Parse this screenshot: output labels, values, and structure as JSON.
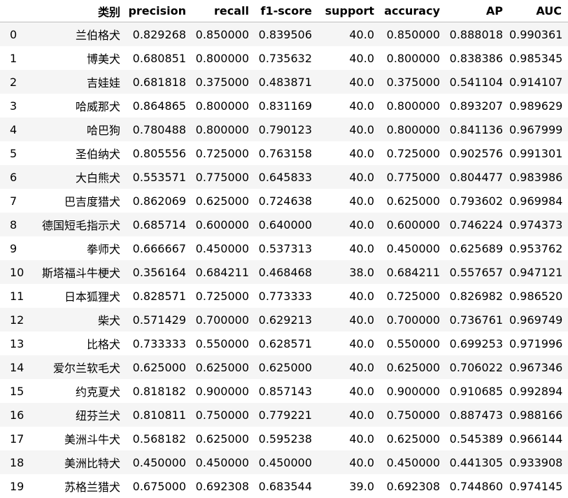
{
  "table": {
    "columns": [
      "",
      "类别",
      "precision",
      "recall",
      "f1-score",
      "support",
      "accuracy",
      "AP",
      "AUC"
    ],
    "rows": [
      [
        "0",
        "兰伯格犬",
        "0.829268",
        "0.850000",
        "0.839506",
        "40.0",
        "0.850000",
        "0.888018",
        "0.990361"
      ],
      [
        "1",
        "博美犬",
        "0.680851",
        "0.800000",
        "0.735632",
        "40.0",
        "0.800000",
        "0.838386",
        "0.985345"
      ],
      [
        "2",
        "吉娃娃",
        "0.681818",
        "0.375000",
        "0.483871",
        "40.0",
        "0.375000",
        "0.541104",
        "0.914107"
      ],
      [
        "3",
        "哈威那犬",
        "0.864865",
        "0.800000",
        "0.831169",
        "40.0",
        "0.800000",
        "0.893207",
        "0.989629"
      ],
      [
        "4",
        "哈巴狗",
        "0.780488",
        "0.800000",
        "0.790123",
        "40.0",
        "0.800000",
        "0.841136",
        "0.967999"
      ],
      [
        "5",
        "圣伯纳犬",
        "0.805556",
        "0.725000",
        "0.763158",
        "40.0",
        "0.725000",
        "0.902576",
        "0.991301"
      ],
      [
        "6",
        "大白熊犬",
        "0.553571",
        "0.775000",
        "0.645833",
        "40.0",
        "0.775000",
        "0.804477",
        "0.983986"
      ],
      [
        "7",
        "巴吉度猎犬",
        "0.862069",
        "0.625000",
        "0.724638",
        "40.0",
        "0.625000",
        "0.793602",
        "0.969984"
      ],
      [
        "8",
        "德国短毛指示犬",
        "0.685714",
        "0.600000",
        "0.640000",
        "40.0",
        "0.600000",
        "0.746224",
        "0.974373"
      ],
      [
        "9",
        "拳师犬",
        "0.666667",
        "0.450000",
        "0.537313",
        "40.0",
        "0.450000",
        "0.625689",
        "0.953762"
      ],
      [
        "10",
        "斯塔福斗牛梗犬",
        "0.356164",
        "0.684211",
        "0.468468",
        "38.0",
        "0.684211",
        "0.557657",
        "0.947121"
      ],
      [
        "11",
        "日本狐狸犬",
        "0.828571",
        "0.725000",
        "0.773333",
        "40.0",
        "0.725000",
        "0.826982",
        "0.986520"
      ],
      [
        "12",
        "柴犬",
        "0.571429",
        "0.700000",
        "0.629213",
        "40.0",
        "0.700000",
        "0.736761",
        "0.969749"
      ],
      [
        "13",
        "比格犬",
        "0.733333",
        "0.550000",
        "0.628571",
        "40.0",
        "0.550000",
        "0.699253",
        "0.971996"
      ],
      [
        "14",
        "爱尔兰软毛犬",
        "0.625000",
        "0.625000",
        "0.625000",
        "40.0",
        "0.625000",
        "0.706022",
        "0.967346"
      ],
      [
        "15",
        "约克夏犬",
        "0.818182",
        "0.900000",
        "0.857143",
        "40.0",
        "0.900000",
        "0.910685",
        "0.992894"
      ],
      [
        "16",
        "纽芬兰犬",
        "0.810811",
        "0.750000",
        "0.779221",
        "40.0",
        "0.750000",
        "0.887473",
        "0.988166"
      ],
      [
        "17",
        "美洲斗牛犬",
        "0.568182",
        "0.625000",
        "0.595238",
        "40.0",
        "0.625000",
        "0.545389",
        "0.966144"
      ],
      [
        "18",
        "美洲比特犬",
        "0.450000",
        "0.450000",
        "0.450000",
        "40.0",
        "0.450000",
        "0.441305",
        "0.933908"
      ],
      [
        "19",
        "苏格兰猎犬",
        "0.675000",
        "0.692308",
        "0.683544",
        "39.0",
        "0.692308",
        "0.744860",
        "0.974145"
      ]
    ]
  },
  "colors": {
    "row_stripe": "#f5f5f5",
    "row_plain": "#ffffff",
    "header_border": "#bdbdbd",
    "text": "#000000"
  }
}
